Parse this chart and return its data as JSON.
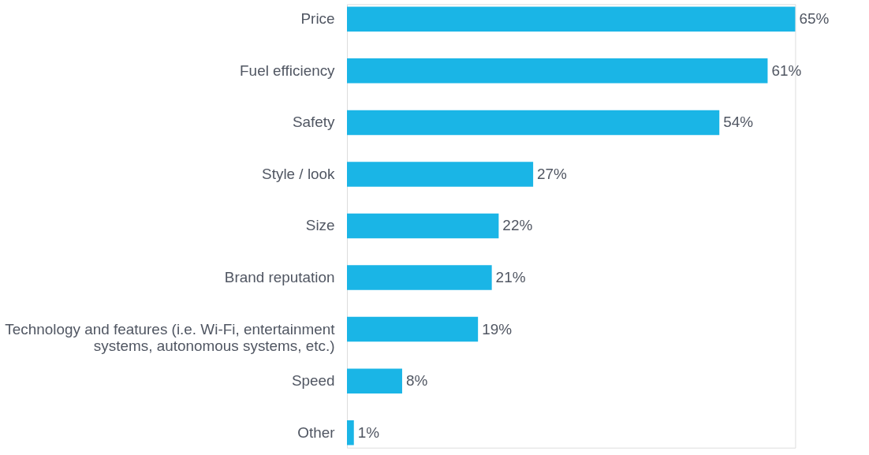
{
  "chart_data": {
    "type": "bar",
    "orientation": "horizontal",
    "categories": [
      "Price",
      "Fuel efficiency",
      "Safety",
      "Style / look",
      "Size",
      "Brand reputation",
      "Technology and features (i.e. Wi-Fi, entertainment\nsystems, autonomous systems, etc.)",
      "Speed",
      "Other"
    ],
    "values": [
      65,
      61,
      54,
      27,
      22,
      21,
      19,
      8,
      1
    ],
    "value_labels": [
      "65%",
      "61%",
      "54%",
      "27%",
      "22%",
      "21%",
      "19%",
      "8%",
      "1%"
    ],
    "color": "#1ab5e6"
  }
}
